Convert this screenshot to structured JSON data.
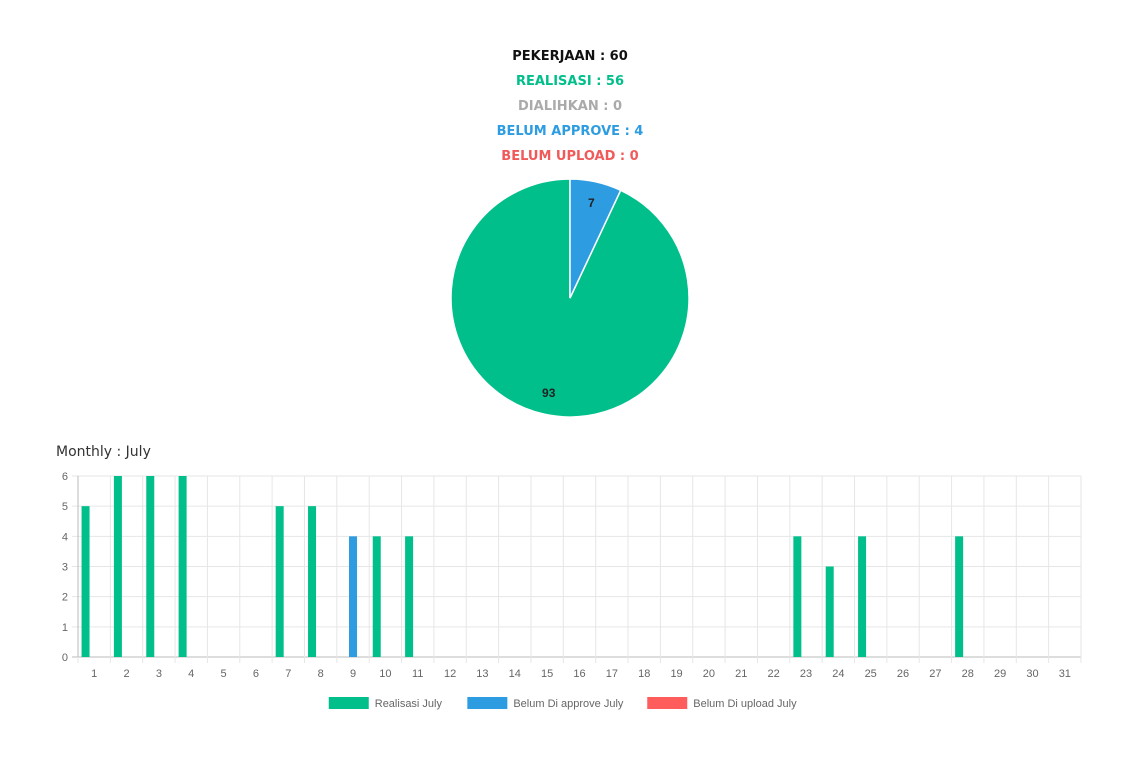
{
  "summary": {
    "pekerjaan": "PEKERJAAN : 60",
    "realisasi": "REALISASI : 56",
    "dialihkan": "DIALIHKAN : 0",
    "belum_approve": "BELUM APPROVE : 4",
    "belum_upload": "BELUM UPLOAD : 0"
  },
  "colors": {
    "realisasi": "#00bf8b",
    "belum_approve": "#2d9ce0",
    "belum_upload": "#ff5c5c",
    "dialihkan": "#aaaaaa"
  },
  "monthly_title": "Monthly : July",
  "chart_data": [
    {
      "type": "pie",
      "slices": [
        {
          "label": "Realisasi",
          "value": 93,
          "color": "#00bf8b"
        },
        {
          "label": "Belum Approve",
          "value": 7,
          "color": "#2d9ce0"
        }
      ]
    },
    {
      "type": "bar",
      "categories": [
        "1",
        "2",
        "3",
        "4",
        "5",
        "6",
        "7",
        "8",
        "9",
        "10",
        "11",
        "12",
        "13",
        "14",
        "15",
        "16",
        "17",
        "18",
        "19",
        "20",
        "21",
        "22",
        "23",
        "24",
        "25",
        "26",
        "27",
        "28",
        "29",
        "30",
        "31"
      ],
      "series": [
        {
          "name": "Realisasi July",
          "color": "#00bf8b",
          "values": [
            5,
            6,
            6,
            6,
            0,
            0,
            5,
            5,
            0,
            4,
            4,
            0,
            0,
            0,
            0,
            0,
            0,
            0,
            0,
            0,
            0,
            0,
            4,
            3,
            4,
            0,
            0,
            4,
            0,
            0,
            0
          ]
        },
        {
          "name": "Belum Di approve July",
          "color": "#2d9ce0",
          "values": [
            0,
            0,
            0,
            0,
            0,
            0,
            0,
            0,
            4,
            0,
            0,
            0,
            0,
            0,
            0,
            0,
            0,
            0,
            0,
            0,
            0,
            0,
            0,
            0,
            0,
            0,
            0,
            0,
            0,
            0,
            0
          ]
        },
        {
          "name": "Belum Di upload July",
          "color": "#ff5c5c",
          "values": [
            0,
            0,
            0,
            0,
            0,
            0,
            0,
            0,
            0,
            0,
            0,
            0,
            0,
            0,
            0,
            0,
            0,
            0,
            0,
            0,
            0,
            0,
            0,
            0,
            0,
            0,
            0,
            0,
            0,
            0,
            0
          ]
        }
      ],
      "ylim": [
        0,
        6
      ],
      "yticks": [
        "0",
        "1",
        "2",
        "3",
        "4",
        "5",
        "6"
      ],
      "grid": true,
      "legend": "bottom"
    }
  ]
}
